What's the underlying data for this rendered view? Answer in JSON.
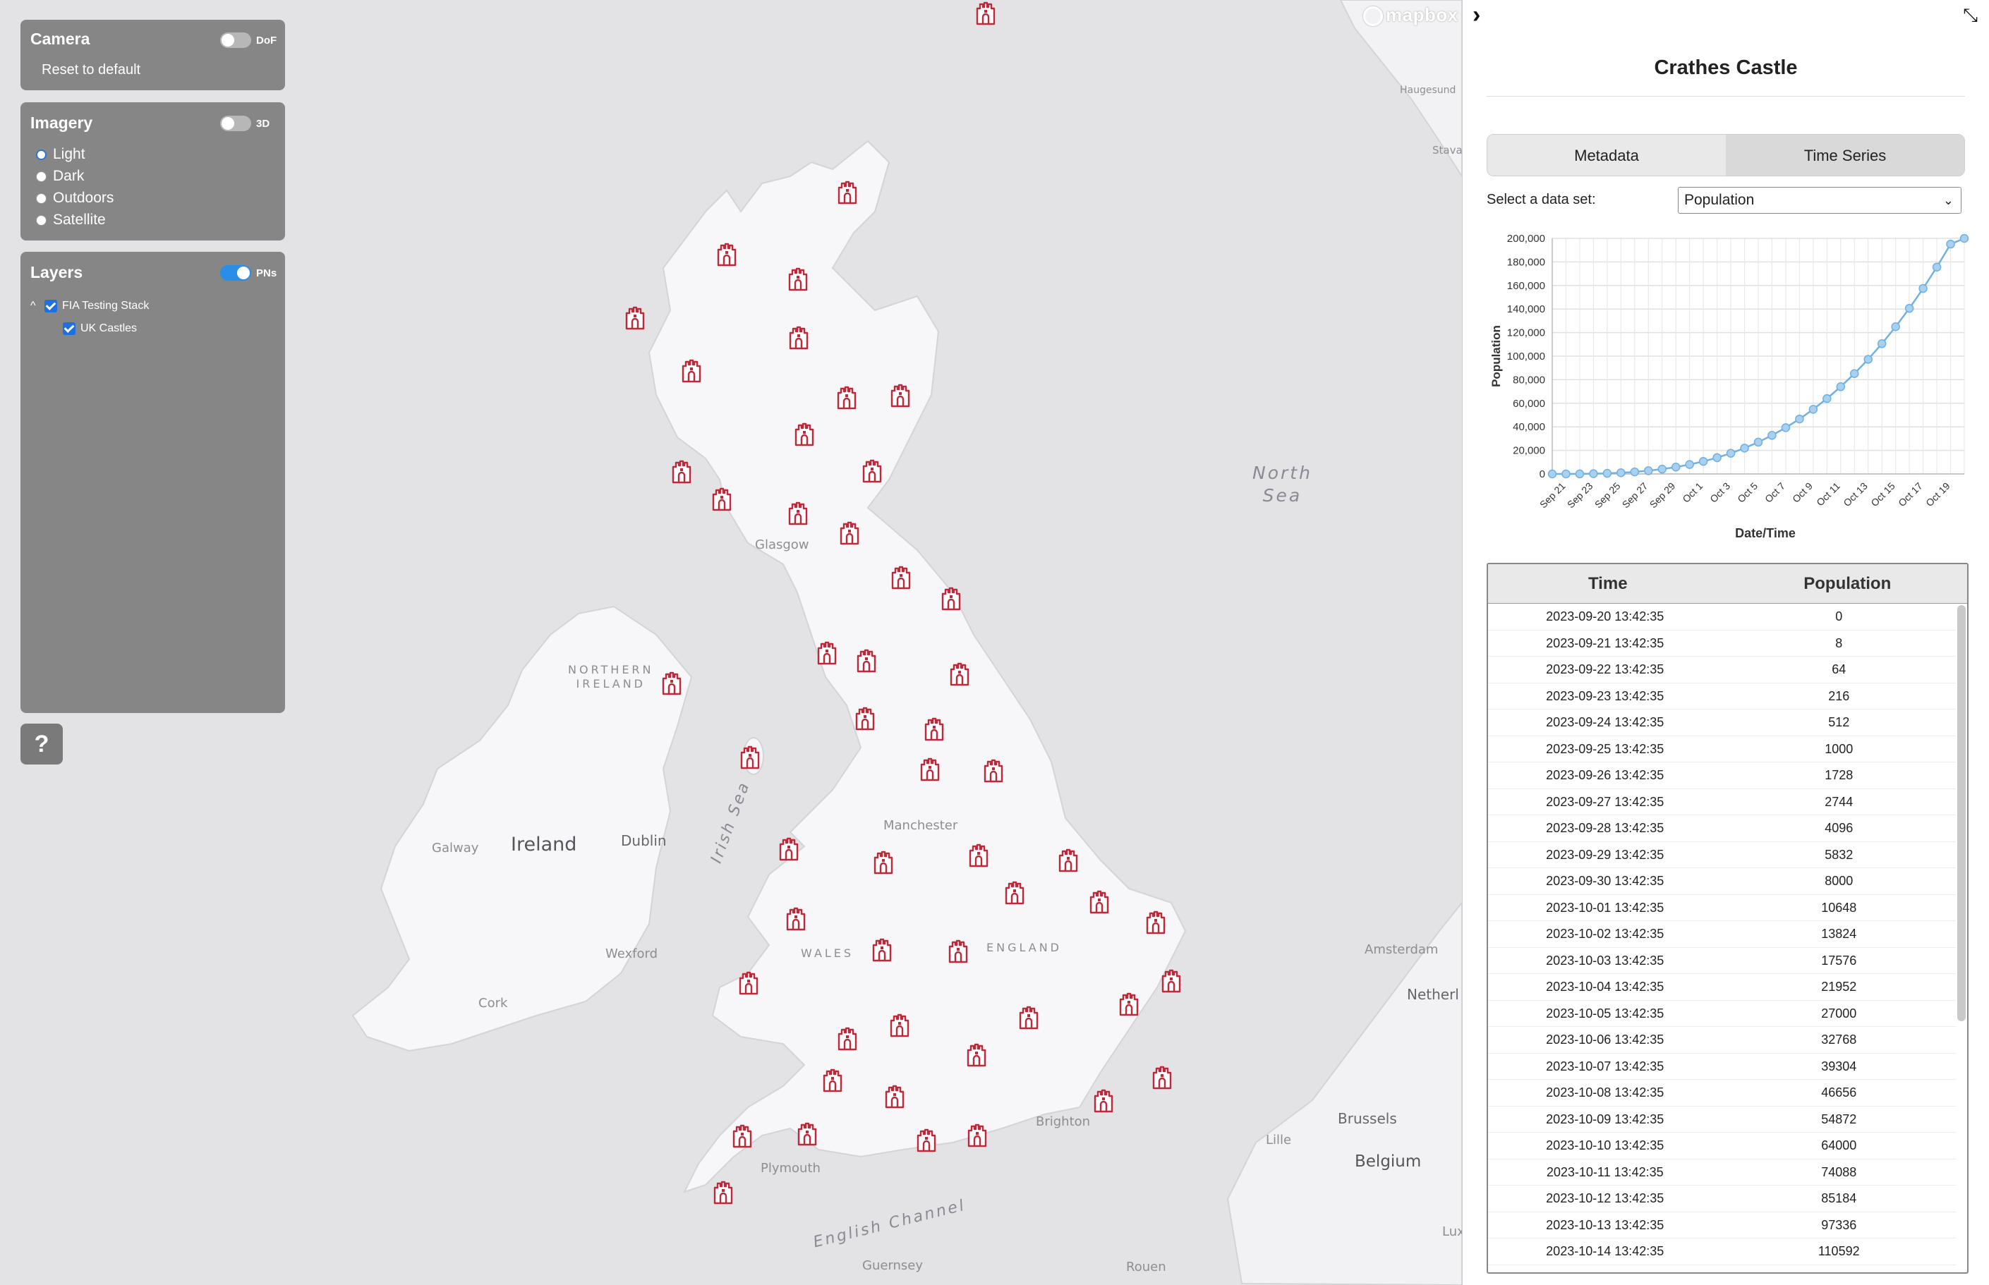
{
  "map": {
    "labels": {
      "north_sea": "North\nSea",
      "irish_sea": "Irish Sea",
      "english_channel": "English Channel",
      "ireland": "Ireland",
      "northern_ireland": "NORTHERN\nIRELAND",
      "wales": "WALES",
      "england": "ENGLAND",
      "glasgow": "Glasgow",
      "manchester": "Manchester",
      "dublin": "Dublin",
      "galway": "Galway",
      "wexford": "Wexford",
      "cork": "Cork",
      "plymouth": "Plymouth",
      "brighton": "Brighton",
      "guernsey": "Guernsey",
      "rouen": "Rouen",
      "lille": "Lille",
      "brussels": "Brussels",
      "belgium": "Belgium",
      "amsterdam": "Amsterdam",
      "netherl": "Netherl",
      "lux": "Lux",
      "haugesund": "Haugesund",
      "stava": "Stava"
    },
    "attribution": "mapbox",
    "marker_icon": "castle-icon",
    "marker_color": "#c0283a"
  },
  "camera": {
    "title": "Camera",
    "dof_label": "DoF",
    "dof_on": false,
    "reset_label": "Reset to default"
  },
  "imagery": {
    "title": "Imagery",
    "three_d_label": "3D",
    "three_d_on": false,
    "options": [
      "Light",
      "Dark",
      "Outdoors",
      "Satellite"
    ],
    "selected": "Light"
  },
  "layers": {
    "title": "Layers",
    "pns_label": "PNs",
    "pns_on": true,
    "group": "FIA Testing Stack",
    "item": "UK Castles"
  },
  "help": {
    "label": "?"
  },
  "sidebar": {
    "collapse_icon": "›",
    "shrink_icon": "⤡",
    "title": "Crathes Castle",
    "tabs": [
      "Metadata",
      "Time Series"
    ],
    "active_tab": "Time Series",
    "dataset_label": "Select a data set:",
    "dataset_value": "Population"
  },
  "chart_data": {
    "type": "line",
    "xlabel": "Date/Time",
    "ylabel": "Population",
    "ylim": [
      0,
      200000
    ],
    "yticks": [
      "0",
      "20,000",
      "40,000",
      "60,000",
      "80,000",
      "100,000",
      "120,000",
      "140,000",
      "160,000",
      "180,000",
      "200,000"
    ],
    "xticks": [
      "Sep 21",
      "Sep 23",
      "Sep 25",
      "Sep 27",
      "Sep 29",
      "Oct 1",
      "Oct 3",
      "Oct 5",
      "Oct 7",
      "Oct 9",
      "Oct 11",
      "Oct 13",
      "Oct 15",
      "Oct 17",
      "Oct 19"
    ],
    "series": [
      {
        "x": [
          "2023-09-20",
          "2023-09-21",
          "2023-09-22",
          "2023-09-23",
          "2023-09-24",
          "2023-09-25",
          "2023-09-26",
          "2023-09-27",
          "2023-09-28",
          "2023-09-29",
          "2023-09-30",
          "2023-10-01",
          "2023-10-02",
          "2023-10-03",
          "2023-10-04",
          "2023-10-05",
          "2023-10-06",
          "2023-10-07",
          "2023-10-08",
          "2023-10-09",
          "2023-10-10",
          "2023-10-11",
          "2023-10-12",
          "2023-10-13",
          "2023-10-14",
          "2023-10-15",
          "2023-10-16",
          "2023-10-17",
          "2023-10-18",
          "2023-10-19",
          "2023-10-20"
        ],
        "values": [
          0,
          8,
          64,
          216,
          512,
          1000,
          1728,
          2744,
          4096,
          5832,
          8000,
          10648,
          13824,
          17576,
          21952,
          27000,
          32768,
          39304,
          46656,
          54872,
          64000,
          74088,
          85184,
          97336,
          110592,
          125000,
          140608,
          157464,
          175616,
          195112,
          200000
        ],
        "color": "#6fb1e3"
      }
    ],
    "grid": true
  },
  "table": {
    "columns": [
      "Time",
      "Population"
    ],
    "rows": [
      [
        "2023-09-20 13:42:35",
        "0"
      ],
      [
        "2023-09-21 13:42:35",
        "8"
      ],
      [
        "2023-09-22 13:42:35",
        "64"
      ],
      [
        "2023-09-23 13:42:35",
        "216"
      ],
      [
        "2023-09-24 13:42:35",
        "512"
      ],
      [
        "2023-09-25 13:42:35",
        "1000"
      ],
      [
        "2023-09-26 13:42:35",
        "1728"
      ],
      [
        "2023-09-27 13:42:35",
        "2744"
      ],
      [
        "2023-09-28 13:42:35",
        "4096"
      ],
      [
        "2023-09-29 13:42:35",
        "5832"
      ],
      [
        "2023-09-30 13:42:35",
        "8000"
      ],
      [
        "2023-10-01 13:42:35",
        "10648"
      ],
      [
        "2023-10-02 13:42:35",
        "13824"
      ],
      [
        "2023-10-03 13:42:35",
        "17576"
      ],
      [
        "2023-10-04 13:42:35",
        "21952"
      ],
      [
        "2023-10-05 13:42:35",
        "27000"
      ],
      [
        "2023-10-06 13:42:35",
        "32768"
      ],
      [
        "2023-10-07 13:42:35",
        "39304"
      ],
      [
        "2023-10-08 13:42:35",
        "46656"
      ],
      [
        "2023-10-09 13:42:35",
        "54872"
      ],
      [
        "2023-10-10 13:42:35",
        "64000"
      ],
      [
        "2023-10-11 13:42:35",
        "74088"
      ],
      [
        "2023-10-12 13:42:35",
        "85184"
      ],
      [
        "2023-10-13 13:42:35",
        "97336"
      ],
      [
        "2023-10-14 13:42:35",
        "110592"
      ]
    ]
  }
}
